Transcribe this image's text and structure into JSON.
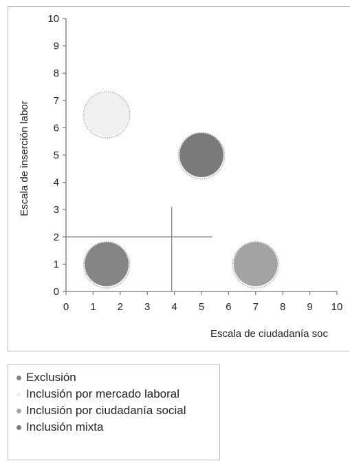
{
  "chart_data": {
    "type": "scatter",
    "xlabel": "Escala de ciudadanía soc",
    "ylabel": "Escala de inserción labor",
    "xlim": [
      0,
      10
    ],
    "ylim": [
      0,
      10
    ],
    "x_ticks": [
      "0",
      "1",
      "2",
      "3",
      "4",
      "5",
      "6",
      "7",
      "8",
      "9",
      "10"
    ],
    "y_ticks": [
      "0",
      "1",
      "2",
      "3",
      "4",
      "5",
      "6",
      "7",
      "8",
      "9",
      "10"
    ],
    "grid": false,
    "legend_position": "bottom",
    "series": [
      {
        "name": "Exclusión",
        "color": "#858585",
        "points": [
          {
            "x": 1.5,
            "y": 1.0
          }
        ]
      },
      {
        "name": "Inclusión por mercado laboral",
        "color": "#f0f0f0",
        "points": [
          {
            "x": 1.5,
            "y": 6.5
          }
        ]
      },
      {
        "name": "Inclusión por ciudadanía social",
        "color": "#a3a3a3",
        "points": [
          {
            "x": 7.0,
            "y": 1.0
          }
        ]
      },
      {
        "name": "Inclusión mixta",
        "color": "#7a7a7a",
        "points": [
          {
            "x": 5.0,
            "y": 5.0
          }
        ]
      }
    ],
    "reference_lines": [
      {
        "orientation": "horizontal",
        "value": 2.0,
        "from": 0,
        "to": 5.4
      },
      {
        "orientation": "vertical",
        "value": 3.9,
        "from": 0,
        "to": 3.1
      }
    ]
  }
}
